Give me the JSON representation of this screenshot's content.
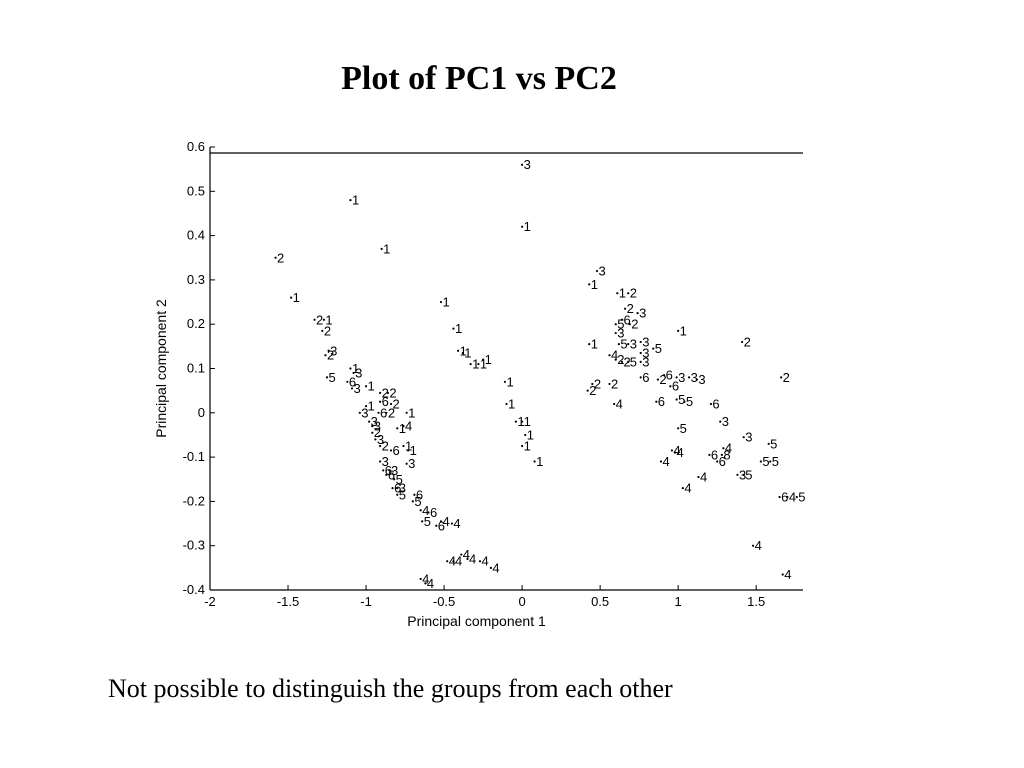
{
  "slide": {
    "title": "Plot of PC1 vs PC2",
    "caption": "Not possible to distinguish the groups from each other"
  },
  "chart_data": {
    "type": "scatter",
    "title": "",
    "xlabel": "Principal component 1",
    "ylabel": "Principal component 2",
    "xlim": [
      -2,
      1.8
    ],
    "ylim": [
      -0.4,
      0.6
    ],
    "xticks": [
      -2,
      -1.5,
      -1,
      -0.5,
      0,
      0.5,
      1,
      1.5
    ],
    "xtick_labels": [
      "-2",
      "-1.5",
      "-1",
      "-0.5",
      "0",
      "0.5",
      "1",
      "1.5"
    ],
    "yticks": [
      0.6,
      0.5,
      0.4,
      0.3,
      0.2,
      0.1,
      0,
      -0.1,
      -0.2,
      -0.3,
      -0.4
    ],
    "ytick_labels": [
      "0.6",
      "0.5",
      "0.4",
      "0.3",
      "0.2",
      "0.1",
      "0",
      "-0.1",
      "-0.2",
      "-0.3",
      "-0.4"
    ],
    "grid": false,
    "marker": "group number as text label",
    "points": [
      {
        "g": "3",
        "x": 0.0,
        "y": 0.56
      },
      {
        "g": "1",
        "x": 0.0,
        "y": 0.42
      },
      {
        "g": "1",
        "x": -1.1,
        "y": 0.48
      },
      {
        "g": "1",
        "x": -0.9,
        "y": 0.37
      },
      {
        "g": "2",
        "x": -1.58,
        "y": 0.35
      },
      {
        "g": "1",
        "x": -1.48,
        "y": 0.26
      },
      {
        "g": "2",
        "x": -1.33,
        "y": 0.21
      },
      {
        "g": "1",
        "x": -1.27,
        "y": 0.21
      },
      {
        "g": "2",
        "x": -1.28,
        "y": 0.185
      },
      {
        "g": "3",
        "x": -1.24,
        "y": 0.14
      },
      {
        "g": "2",
        "x": -1.26,
        "y": 0.13
      },
      {
        "g": "1",
        "x": -1.1,
        "y": 0.1
      },
      {
        "g": "3",
        "x": -1.08,
        "y": 0.09
      },
      {
        "g": "5",
        "x": -1.25,
        "y": 0.08
      },
      {
        "g": "6",
        "x": -1.12,
        "y": 0.07
      },
      {
        "g": "3",
        "x": -1.09,
        "y": 0.055
      },
      {
        "g": "1",
        "x": -1.0,
        "y": 0.06
      },
      {
        "g": "2",
        "x": -0.91,
        "y": 0.045
      },
      {
        "g": "2",
        "x": -0.86,
        "y": 0.045
      },
      {
        "g": "6",
        "x": -0.91,
        "y": 0.025
      },
      {
        "g": "2",
        "x": -0.84,
        "y": 0.02
      },
      {
        "g": "1",
        "x": -1.0,
        "y": 0.015
      },
      {
        "g": "3",
        "x": -1.04,
        "y": 0.0
      },
      {
        "g": "6",
        "x": -0.92,
        "y": 0.0
      },
      {
        "g": "2",
        "x": -0.87,
        "y": 0.0
      },
      {
        "g": "1",
        "x": -0.74,
        "y": 0.0
      },
      {
        "g": "3",
        "x": -0.98,
        "y": -0.02
      },
      {
        "g": "3",
        "x": -0.96,
        "y": -0.03
      },
      {
        "g": "1",
        "x": -0.8,
        "y": -0.035
      },
      {
        "g": "4",
        "x": -0.76,
        "y": -0.03
      },
      {
        "g": "2",
        "x": -0.96,
        "y": -0.045
      },
      {
        "g": "3",
        "x": -0.94,
        "y": -0.06
      },
      {
        "g": "1",
        "x": -0.76,
        "y": -0.075
      },
      {
        "g": "2",
        "x": -0.91,
        "y": -0.075
      },
      {
        "g": "6",
        "x": -0.84,
        "y": -0.085
      },
      {
        "g": "1",
        "x": -0.73,
        "y": -0.085
      },
      {
        "g": "3",
        "x": -0.91,
        "y": -0.11
      },
      {
        "g": "3",
        "x": -0.74,
        "y": -0.115
      },
      {
        "g": "6",
        "x": -0.89,
        "y": -0.13
      },
      {
        "g": "3",
        "x": -0.85,
        "y": -0.13
      },
      {
        "g": "6",
        "x": -0.87,
        "y": -0.14
      },
      {
        "g": "5",
        "x": -0.82,
        "y": -0.15
      },
      {
        "g": "6",
        "x": -0.83,
        "y": -0.17
      },
      {
        "g": "3",
        "x": -0.8,
        "y": -0.17
      },
      {
        "g": "5",
        "x": -0.8,
        "y": -0.185
      },
      {
        "g": "6",
        "x": -0.69,
        "y": -0.185
      },
      {
        "g": "5",
        "x": -0.7,
        "y": -0.2
      },
      {
        "g": "6",
        "x": -0.6,
        "y": -0.225
      },
      {
        "g": "4",
        "x": -0.65,
        "y": -0.22
      },
      {
        "g": "5",
        "x": -0.64,
        "y": -0.245
      },
      {
        "g": "6",
        "x": -0.55,
        "y": -0.255
      },
      {
        "g": "4",
        "x": -0.52,
        "y": -0.245
      },
      {
        "g": "4",
        "x": -0.45,
        "y": -0.25
      },
      {
        "g": "4",
        "x": -0.48,
        "y": -0.335
      },
      {
        "g": "4",
        "x": -0.44,
        "y": -0.335
      },
      {
        "g": "4",
        "x": -0.39,
        "y": -0.32
      },
      {
        "g": "4",
        "x": -0.35,
        "y": -0.33
      },
      {
        "g": "4",
        "x": -0.27,
        "y": -0.335
      },
      {
        "g": "4",
        "x": -0.2,
        "y": -0.35
      },
      {
        "g": "4",
        "x": -0.65,
        "y": -0.375
      },
      {
        "g": "4",
        "x": -0.62,
        "y": -0.385
      },
      {
        "g": "1",
        "x": -0.52,
        "y": 0.25
      },
      {
        "g": "1",
        "x": -0.44,
        "y": 0.19
      },
      {
        "g": "1",
        "x": -0.41,
        "y": 0.14
      },
      {
        "g": "1",
        "x": -0.38,
        "y": 0.135
      },
      {
        "g": "1",
        "x": -0.33,
        "y": 0.11
      },
      {
        "g": "1",
        "x": -0.28,
        "y": 0.11
      },
      {
        "g": "1",
        "x": -0.25,
        "y": 0.12
      },
      {
        "g": "1",
        "x": -0.11,
        "y": 0.07
      },
      {
        "g": "1",
        "x": -0.1,
        "y": 0.02
      },
      {
        "g": "1",
        "x": -0.04,
        "y": -0.02
      },
      {
        "g": "1",
        "x": 0.0,
        "y": -0.02
      },
      {
        "g": "1",
        "x": 0.02,
        "y": -0.05
      },
      {
        "g": "1",
        "x": 0.0,
        "y": -0.075
      },
      {
        "g": "1",
        "x": 0.08,
        "y": -0.11
      },
      {
        "g": "3",
        "x": 0.48,
        "y": 0.32
      },
      {
        "g": "1",
        "x": 0.43,
        "y": 0.29
      },
      {
        "g": "1",
        "x": 0.61,
        "y": 0.27
      },
      {
        "g": "2",
        "x": 0.68,
        "y": 0.27
      },
      {
        "g": "2",
        "x": 0.66,
        "y": 0.235
      },
      {
        "g": "3",
        "x": 0.74,
        "y": 0.225
      },
      {
        "g": "6",
        "x": 0.64,
        "y": 0.21
      },
      {
        "g": "5",
        "x": 0.6,
        "y": 0.2
      },
      {
        "g": "2",
        "x": 0.69,
        "y": 0.2
      },
      {
        "g": "3",
        "x": 0.6,
        "y": 0.18
      },
      {
        "g": "1",
        "x": 1.0,
        "y": 0.185
      },
      {
        "g": "2",
        "x": 1.41,
        "y": 0.16
      },
      {
        "g": "1",
        "x": 0.43,
        "y": 0.155
      },
      {
        "g": "5",
        "x": 0.62,
        "y": 0.155
      },
      {
        "g": "3",
        "x": 0.68,
        "y": 0.155
      },
      {
        "g": "3",
        "x": 0.76,
        "y": 0.16
      },
      {
        "g": "4",
        "x": 0.56,
        "y": 0.13
      },
      {
        "g": "2",
        "x": 0.6,
        "y": 0.12
      },
      {
        "g": "5",
        "x": 0.84,
        "y": 0.145
      },
      {
        "g": "3",
        "x": 0.76,
        "y": 0.135
      },
      {
        "g": "5",
        "x": 0.68,
        "y": 0.115
      },
      {
        "g": "2",
        "x": 0.64,
        "y": 0.115
      },
      {
        "g": "3",
        "x": 0.76,
        "y": 0.115
      },
      {
        "g": "6",
        "x": 0.76,
        "y": 0.08
      },
      {
        "g": "6",
        "x": 0.91,
        "y": 0.085
      },
      {
        "g": "2",
        "x": 0.87,
        "y": 0.075
      },
      {
        "g": "3",
        "x": 0.99,
        "y": 0.08
      },
      {
        "g": "3",
        "x": 1.07,
        "y": 0.08
      },
      {
        "g": "3",
        "x": 1.12,
        "y": 0.075
      },
      {
        "g": "2",
        "x": 1.66,
        "y": 0.08
      },
      {
        "g": "2",
        "x": 0.45,
        "y": 0.065
      },
      {
        "g": "2",
        "x": 0.42,
        "y": 0.05
      },
      {
        "g": "2",
        "x": 0.56,
        "y": 0.065
      },
      {
        "g": "6",
        "x": 0.95,
        "y": 0.06
      },
      {
        "g": "6",
        "x": 0.86,
        "y": 0.025
      },
      {
        "g": "4",
        "x": 0.59,
        "y": 0.02
      },
      {
        "g": "5",
        "x": 0.99,
        "y": 0.03
      },
      {
        "g": "5",
        "x": 1.04,
        "y": 0.025
      },
      {
        "g": "6",
        "x": 1.21,
        "y": 0.02
      },
      {
        "g": "3",
        "x": 1.27,
        "y": -0.02
      },
      {
        "g": "5",
        "x": 1.0,
        "y": -0.035
      },
      {
        "g": "3",
        "x": 1.42,
        "y": -0.055
      },
      {
        "g": "5",
        "x": 1.58,
        "y": -0.07
      },
      {
        "g": "4",
        "x": 0.96,
        "y": -0.085
      },
      {
        "g": "4",
        "x": 0.98,
        "y": -0.09
      },
      {
        "g": "4",
        "x": 1.29,
        "y": -0.08
      },
      {
        "g": "6",
        "x": 1.2,
        "y": -0.095
      },
      {
        "g": "8",
        "x": 1.28,
        "y": -0.095
      },
      {
        "g": "6",
        "x": 1.25,
        "y": -0.11
      },
      {
        "g": "4",
        "x": 0.89,
        "y": -0.11
      },
      {
        "g": "5",
        "x": 1.53,
        "y": -0.11
      },
      {
        "g": "5",
        "x": 1.59,
        "y": -0.11
      },
      {
        "g": "4",
        "x": 1.13,
        "y": -0.145
      },
      {
        "g": "3",
        "x": 1.38,
        "y": -0.14
      },
      {
        "g": "5",
        "x": 1.42,
        "y": -0.14
      },
      {
        "g": "4",
        "x": 1.03,
        "y": -0.17
      },
      {
        "g": "6",
        "x": 1.65,
        "y": -0.19
      },
      {
        "g": "4",
        "x": 1.7,
        "y": -0.19
      },
      {
        "g": "5",
        "x": 1.76,
        "y": -0.19
      },
      {
        "g": "4",
        "x": 1.48,
        "y": -0.3
      },
      {
        "g": "4",
        "x": 1.67,
        "y": -0.365
      }
    ]
  }
}
